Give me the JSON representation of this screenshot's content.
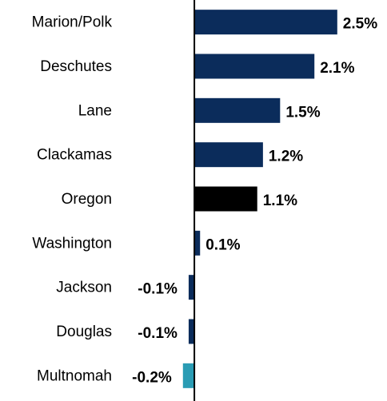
{
  "chart_data": {
    "type": "hbar",
    "categories": [
      "Marion/Polk",
      "Deschutes",
      "Lane",
      "Clackamas",
      "Oregon",
      "Washington",
      "Jackson",
      "Douglas",
      "Multnomah"
    ],
    "values": [
      2.5,
      2.1,
      1.5,
      1.2,
      1.1,
      0.1,
      -0.1,
      -0.1,
      -0.2
    ],
    "value_labels": [
      "2.5%",
      "2.1%",
      "1.5%",
      "1.2%",
      "1.1%",
      "0.1%",
      "-0.1%",
      "-0.1%",
      "-0.2%"
    ],
    "colors": [
      "#0b2c5b",
      "#0b2c5b",
      "#0b2c5b",
      "#0b2c5b",
      "#000000",
      "#0b2c5b",
      "#0b2c5b",
      "#0b2c5b",
      "#2a9cb4"
    ],
    "xlim": [
      -1.4,
      3.3
    ]
  }
}
